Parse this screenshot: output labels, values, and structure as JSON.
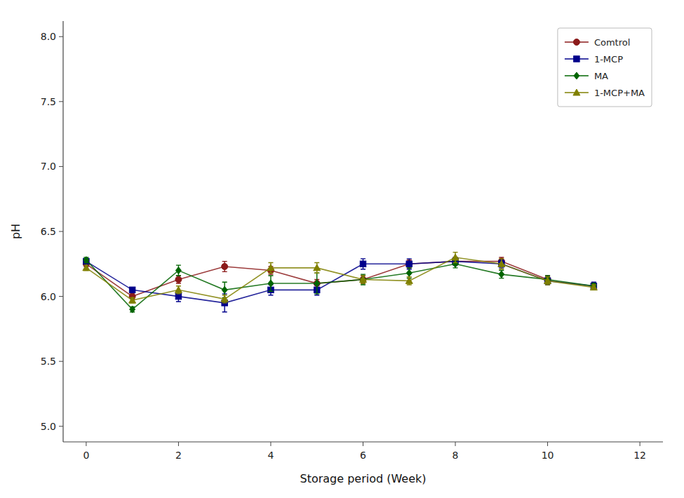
{
  "chart_data": {
    "type": "line",
    "xlabel": "Storage period (Week)",
    "ylabel": "pH",
    "x": [
      0,
      1,
      2,
      3,
      4,
      5,
      6,
      7,
      8,
      9,
      10,
      11
    ],
    "series": [
      {
        "name": "Comtrol",
        "color": "#8B1A1A",
        "marker": "circle",
        "values": [
          6.25,
          6.0,
          6.13,
          6.23,
          6.2,
          6.1,
          6.13,
          6.25,
          6.27,
          6.27,
          6.13,
          null
        ],
        "errors": [
          0.02,
          0.02,
          0.03,
          0.04,
          0.03,
          0.03,
          0.03,
          0.03,
          0.03,
          0.03,
          0.03,
          null
        ]
      },
      {
        "name": "1-MCP",
        "color": "#00008B",
        "marker": "square",
        "values": [
          6.27,
          6.05,
          6.0,
          5.95,
          6.05,
          6.05,
          6.25,
          6.25,
          6.27,
          6.25,
          6.12,
          6.08
        ],
        "errors": [
          0.02,
          0.02,
          0.04,
          0.07,
          0.04,
          0.04,
          0.04,
          0.04,
          0.03,
          0.03,
          0.03,
          0.03
        ]
      },
      {
        "name": "MA",
        "color": "#006400",
        "marker": "diamond",
        "values": [
          6.28,
          5.9,
          6.2,
          6.05,
          6.1,
          6.1,
          6.13,
          6.18,
          6.25,
          6.17,
          6.13,
          6.08
        ],
        "errors": [
          0.02,
          0.02,
          0.04,
          0.06,
          0.06,
          0.08,
          0.04,
          0.04,
          0.03,
          0.03,
          0.03,
          0.02
        ]
      },
      {
        "name": "1-MCP+MA",
        "color": "#808000",
        "marker": "triangle",
        "values": [
          6.22,
          5.97,
          6.05,
          5.98,
          6.22,
          6.22,
          6.13,
          6.12,
          6.3,
          6.25,
          6.12,
          6.07
        ],
        "errors": [
          0.02,
          0.02,
          0.03,
          0.03,
          0.04,
          0.04,
          0.03,
          0.03,
          0.04,
          0.04,
          0.03,
          0.02
        ]
      }
    ],
    "xlim": [
      -0.5,
      12.5
    ],
    "ylim": [
      4.88,
      8.12
    ],
    "xticks": [
      0,
      2,
      4,
      6,
      8,
      10,
      12
    ],
    "yticks": [
      {
        "value": 5.0,
        "label": "5.0"
      },
      5.5,
      {
        "value": 6.0,
        "label": "6.0"
      },
      6.5,
      {
        "value": 7.0,
        "label": "7.0"
      },
      7.5,
      {
        "value": 8.0,
        "label": "8.0"
      }
    ],
    "grid": false,
    "legend": "upper right"
  }
}
